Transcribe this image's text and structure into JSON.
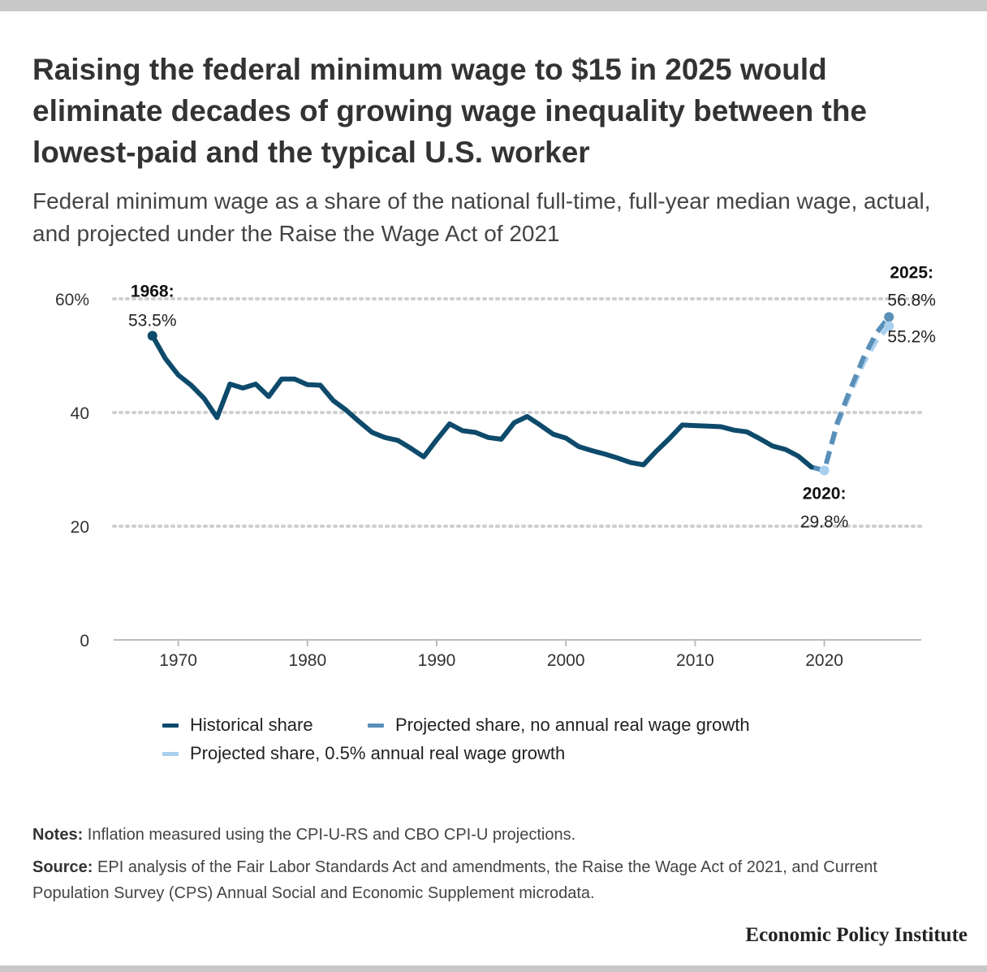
{
  "header": {
    "title": "Raising the federal minimum wage to $15 in 2025 would eliminate decades of growing wage inequality between the lowest-paid and the typical U.S. worker",
    "subtitle": "Federal minimum wage as a share of the national full-time, full-year median wage, actual, and projected under the Raise the Wage Act of 2021"
  },
  "legend": {
    "items": [
      {
        "label": "Historical share",
        "color": "#0d4a6b"
      },
      {
        "label": "Projected share, no annual real wage growth",
        "color": "#5a8fb8"
      },
      {
        "label": "Projected share, 0.5% annual real wage growth",
        "color": "#a9cfee"
      }
    ]
  },
  "notes": {
    "notes_label": "Notes:",
    "notes_text": " Inflation measured using the CPI-U-RS and CBO CPI-U projections.",
    "source_label": "Source:",
    "source_text": " EPI analysis of the Fair Labor Standards Act and amendments, the Raise the Wage Act of 2021, and Current Population Survey (CPS) Annual Social and Economic Supplement microdata."
  },
  "brand": "Economic Policy Institute",
  "chart_data": {
    "type": "line",
    "xlim": [
      1965,
      2027.5
    ],
    "ylim": [
      0,
      60
    ],
    "x_ticks": [
      {
        "value": 1970,
        "label": "1970"
      },
      {
        "value": 1980,
        "label": "1980"
      },
      {
        "value": 1990,
        "label": "1990"
      },
      {
        "value": 2000,
        "label": "2000"
      },
      {
        "value": 2010,
        "label": "2010"
      },
      {
        "value": 2020,
        "label": "2020"
      }
    ],
    "y_ticks": [
      {
        "value": 0,
        "label": "0"
      },
      {
        "value": 20,
        "label": "20"
      },
      {
        "value": 40,
        "label": "40"
      },
      {
        "value": 60,
        "label": "60%"
      }
    ],
    "grid": true,
    "legend_position": "bottom",
    "series": [
      {
        "name": "Historical share",
        "color": "#0d4a6b",
        "style": "solid",
        "x": [
          1968,
          1969,
          1970,
          1971,
          1972,
          1973,
          1974,
          1975,
          1976,
          1977,
          1978,
          1979,
          1980,
          1981,
          1982,
          1983,
          1984,
          1985,
          1986,
          1987,
          1988,
          1989,
          1990,
          1991,
          1992,
          1993,
          1994,
          1995,
          1996,
          1997,
          1998,
          1999,
          2000,
          2001,
          2002,
          2003,
          2004,
          2005,
          2006,
          2007,
          2008,
          2009,
          2010,
          2011,
          2012,
          2013,
          2014,
          2015,
          2016,
          2017,
          2018,
          2019
        ],
        "y": [
          53.5,
          49.5,
          46.6,
          44.8,
          42.5,
          39.1,
          45.0,
          44.3,
          45.0,
          42.8,
          45.9,
          45.9,
          44.9,
          44.8,
          42.1,
          40.4,
          38.4,
          36.5,
          35.6,
          35.1,
          33.7,
          32.2,
          35.2,
          38.0,
          36.8,
          36.5,
          35.6,
          35.3,
          38.2,
          39.3,
          37.8,
          36.2,
          35.5,
          34.0,
          33.3,
          32.7,
          32.0,
          31.2,
          30.8,
          33.2,
          35.4,
          37.8,
          37.7,
          37.6,
          37.5,
          36.9,
          36.6,
          35.4,
          34.1,
          33.5,
          32.3,
          30.4
        ]
      },
      {
        "name": "Projected share, no annual real wage growth",
        "color": "#5a8fb8",
        "style": "dashed",
        "x": [
          2019,
          2020,
          2021,
          2022,
          2023,
          2024,
          2025
        ],
        "y": [
          30.4,
          29.8,
          38.2,
          44.0,
          49.5,
          53.9,
          56.8
        ]
      },
      {
        "name": "Projected share, 0.5% annual real wage growth",
        "color": "#a9cfee",
        "style": "dashed",
        "x": [
          2019,
          2020,
          2021,
          2022,
          2023,
          2024,
          2025
        ],
        "y": [
          30.4,
          29.8,
          37.8,
          43.4,
          48.6,
          52.6,
          55.2
        ]
      }
    ],
    "annotations": [
      {
        "year_label": "1968:",
        "value_label": "53.5%",
        "x": 1968,
        "y": 53.5
      },
      {
        "year_label": "2020:",
        "value_label": "29.8%",
        "x": 2020,
        "y": 29.8
      },
      {
        "year_label": "2025:",
        "value_label": "56.8%",
        "x": 2025,
        "y": 56.8
      },
      {
        "year_label": "",
        "value_label": "55.2%",
        "x": 2025,
        "y": 55.2
      }
    ]
  }
}
